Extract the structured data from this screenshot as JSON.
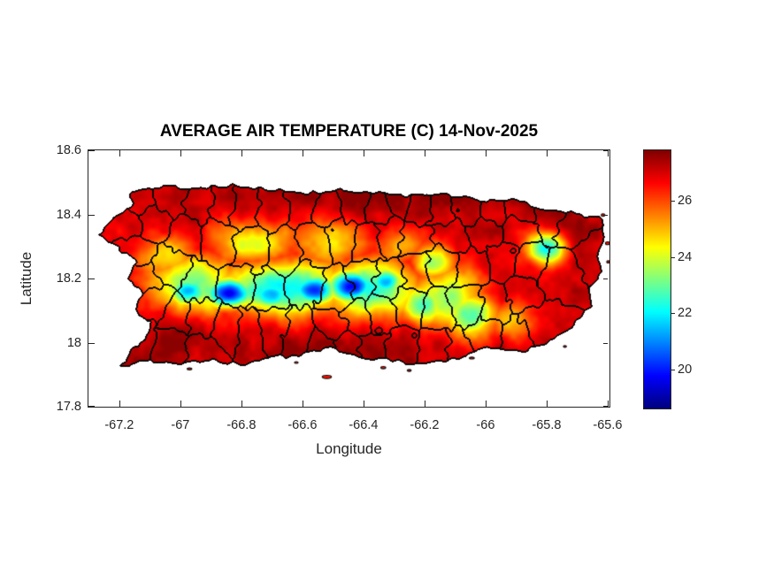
{
  "figure": {
    "background": "#ffffff",
    "text_color": "#262626",
    "axis_color": "#262626"
  },
  "chart_data": {
    "type": "heatmap",
    "title": "AVERAGE AIR TEMPERATURE (C) 14-Nov-2025",
    "xlabel": "Longitude",
    "ylabel": "Latitude",
    "region": "Puerto Rico municipal map with filled temperature contours",
    "units": "C",
    "xlim": [
      -67.301,
      -65.594
    ],
    "ylim": [
      17.8,
      18.6
    ],
    "xticks": [
      -67.2,
      -67,
      -66.8,
      -66.6,
      -66.4,
      -66.2,
      -66,
      -65.8,
      -65.6
    ],
    "xtick_labels": [
      "-67.2",
      "-67",
      "-66.8",
      "-66.6",
      "-66.4",
      "-66.2",
      "-66",
      "-65.8",
      "-65.6"
    ],
    "yticks": [
      18.6,
      18.4,
      18.2,
      18,
      17.8
    ],
    "ytick_labels": [
      "18.6",
      "18.4",
      "18.2",
      "18",
      "17.8"
    ],
    "grid": false,
    "colorbar": {
      "colormap": "jet",
      "range": [
        18.6,
        27.8
      ],
      "ticks": [
        26,
        24,
        22,
        20
      ],
      "tick_labels": [
        "26",
        "24",
        "22",
        "20"
      ],
      "position": "right"
    },
    "base_coastal_temp_c": 27.1,
    "noise": {
      "octave1": [
        20,
        0.8
      ],
      "octave2": [
        55,
        0.35
      ],
      "warp_scale": 46,
      "coast_warp": 0.014,
      "border_warp": 0.028
    },
    "cool_features": [
      [
        -66.95,
        18.18,
        4.2,
        0.1,
        0.065
      ],
      [
        -66.67,
        18.17,
        5.0,
        0.16,
        0.06
      ],
      [
        -66.38,
        18.17,
        5.0,
        0.11,
        0.06
      ],
      [
        -66.13,
        18.14,
        3.8,
        0.09,
        0.065
      ],
      [
        -66.84,
        18.155,
        7.2,
        0.055,
        0.034
      ],
      [
        -66.7,
        18.15,
        6.0,
        0.05,
        0.032
      ],
      [
        -66.56,
        18.165,
        6.6,
        0.055,
        0.034
      ],
      [
        -66.44,
        18.175,
        7.5,
        0.055,
        0.036
      ],
      [
        -66.33,
        18.19,
        6.0,
        0.04,
        0.03
      ],
      [
        -66.97,
        18.16,
        5.8,
        0.05,
        0.034
      ],
      [
        -66.2,
        18.12,
        4.4,
        0.05,
        0.045
      ],
      [
        -66.05,
        18.09,
        4.2,
        0.06,
        0.05
      ],
      [
        -66.17,
        18.25,
        3.5,
        0.05,
        0.042
      ],
      [
        -65.92,
        18.07,
        2.2,
        0.05,
        0.04
      ],
      [
        -65.8,
        18.295,
        5.5,
        0.045,
        0.036
      ],
      [
        -66.76,
        18.31,
        2.9,
        0.1,
        0.05
      ],
      [
        -66.5,
        18.31,
        2.5,
        0.09,
        0.05
      ],
      [
        -67.04,
        18.27,
        2.7,
        0.07,
        0.048
      ],
      [
        -66.28,
        18.3,
        2.0,
        0.06,
        0.045
      ]
    ],
    "warm_features": [
      [
        -66.05,
        18.47,
        0.5,
        0.3,
        0.05
      ],
      [
        -67.0,
        18.02,
        0.5,
        0.1,
        0.045
      ],
      [
        -66.55,
        17.98,
        0.45,
        0.18,
        0.045
      ],
      [
        -65.68,
        18.32,
        0.4,
        0.07,
        0.07
      ],
      [
        -66.45,
        18.47,
        0.35,
        0.15,
        0.04
      ]
    ],
    "coastline": [
      [
        -67.16,
        18.42
      ],
      [
        -67.16,
        18.465
      ],
      [
        -67.05,
        18.49
      ],
      [
        -66.96,
        18.48
      ],
      [
        -66.84,
        18.49
      ],
      [
        -66.7,
        18.475
      ],
      [
        -66.58,
        18.465
      ],
      [
        -66.47,
        18.475
      ],
      [
        -66.35,
        18.465
      ],
      [
        -66.26,
        18.455
      ],
      [
        -66.13,
        18.465
      ],
      [
        -66.0,
        18.44
      ],
      [
        -65.91,
        18.45
      ],
      [
        -65.81,
        18.415
      ],
      [
        -65.7,
        18.4
      ],
      [
        -65.62,
        18.385
      ],
      [
        -65.61,
        18.33
      ],
      [
        -65.63,
        18.27
      ],
      [
        -65.62,
        18.22
      ],
      [
        -65.66,
        18.17
      ],
      [
        -65.65,
        18.11
      ],
      [
        -65.72,
        18.05
      ],
      [
        -65.8,
        18.0
      ],
      [
        -65.88,
        17.97
      ],
      [
        -65.99,
        17.985
      ],
      [
        -66.1,
        17.95
      ],
      [
        -66.21,
        17.93
      ],
      [
        -66.3,
        17.945
      ],
      [
        -66.39,
        17.95
      ],
      [
        -66.51,
        17.985
      ],
      [
        -66.62,
        17.96
      ],
      [
        -66.72,
        17.955
      ],
      [
        -66.79,
        17.93
      ],
      [
        -66.9,
        17.945
      ],
      [
        -67.02,
        17.93
      ],
      [
        -67.1,
        17.945
      ],
      [
        -67.195,
        17.925
      ],
      [
        -67.16,
        17.975
      ],
      [
        -67.11,
        18.01
      ],
      [
        -67.095,
        18.06
      ],
      [
        -67.15,
        18.1
      ],
      [
        -67.125,
        18.15
      ],
      [
        -67.17,
        18.2
      ],
      [
        -67.14,
        18.25
      ],
      [
        -67.19,
        18.285
      ],
      [
        -67.27,
        18.335
      ],
      [
        -67.22,
        18.385
      ]
    ],
    "islets": [
      [
        -66.52,
        17.893,
        0.03,
        0.01
      ],
      [
        -66.335,
        17.922,
        0.016,
        0.007
      ],
      [
        -66.25,
        17.913,
        0.013,
        0.006
      ],
      [
        -66.045,
        17.952,
        0.016,
        0.006
      ],
      [
        -66.97,
        17.918,
        0.015,
        0.006
      ],
      [
        -65.615,
        18.398,
        0.012,
        0.008
      ],
      [
        -65.6,
        18.31,
        0.014,
        0.009
      ],
      [
        -65.598,
        18.252,
        0.01,
        0.007
      ],
      [
        -65.74,
        17.988,
        0.01,
        0.006
      ],
      [
        -66.62,
        17.938,
        0.012,
        0.005
      ]
    ],
    "municipality_seeds": [
      [
        -67.13,
        18.44
      ],
      [
        -67.03,
        18.46
      ],
      [
        -66.94,
        18.44
      ],
      [
        -66.86,
        18.44
      ],
      [
        -66.79,
        18.43
      ],
      [
        -66.7,
        18.42
      ],
      [
        -66.6,
        18.43
      ],
      [
        -66.52,
        18.42
      ],
      [
        -66.43,
        18.43
      ],
      [
        -66.35,
        18.42
      ],
      [
        -66.28,
        18.44
      ],
      [
        -66.21,
        18.42
      ],
      [
        -66.14,
        18.41
      ],
      [
        -66.06,
        18.42
      ],
      [
        -65.97,
        18.41
      ],
      [
        -65.88,
        18.42
      ],
      [
        -65.79,
        18.4
      ],
      [
        -65.7,
        18.37
      ],
      [
        -67.18,
        18.37
      ],
      [
        -67.09,
        18.38
      ],
      [
        -66.98,
        18.33
      ],
      [
        -66.88,
        18.31
      ],
      [
        -66.77,
        18.29
      ],
      [
        -66.66,
        18.28
      ],
      [
        -66.56,
        18.31
      ],
      [
        -66.47,
        18.32
      ],
      [
        -66.39,
        18.31
      ],
      [
        -66.31,
        18.33
      ],
      [
        -66.24,
        18.31
      ],
      [
        -66.11,
        18.34
      ],
      [
        -66.0,
        18.35
      ],
      [
        -65.9,
        18.35
      ],
      [
        -65.65,
        18.28
      ],
      [
        -67.15,
        18.28
      ],
      [
        -67.02,
        18.24
      ],
      [
        -66.93,
        18.19
      ],
      [
        -66.81,
        18.18
      ],
      [
        -66.72,
        18.16
      ],
      [
        -66.59,
        18.19
      ],
      [
        -66.49,
        18.16
      ],
      [
        -66.4,
        18.21
      ],
      [
        -66.32,
        18.2
      ],
      [
        -66.23,
        18.23
      ],
      [
        -66.14,
        18.25
      ],
      [
        -66.04,
        18.23
      ],
      [
        -65.95,
        18.26
      ],
      [
        -65.86,
        18.24
      ],
      [
        -65.76,
        18.22
      ],
      [
        -67.13,
        18.19
      ],
      [
        -67.09,
        18.12
      ],
      [
        -67.01,
        18.07
      ],
      [
        -66.93,
        18.07
      ],
      [
        -66.85,
        18.04
      ],
      [
        -66.77,
        18.03
      ],
      [
        -66.7,
        18.05
      ],
      [
        -66.61,
        18.03
      ],
      [
        -66.5,
        18.05
      ],
      [
        -66.42,
        18.07
      ],
      [
        -66.34,
        18.09
      ],
      [
        -66.25,
        18.12
      ],
      [
        -66.16,
        18.1
      ],
      [
        -66.06,
        18.12
      ],
      [
        -65.97,
        18.12
      ],
      [
        -65.88,
        18.16
      ],
      [
        -65.82,
        18.05
      ],
      [
        -65.9,
        18.0
      ],
      [
        -67.14,
        18.03
      ],
      [
        -67.03,
        18.0
      ],
      [
        -66.92,
        17.97
      ],
      [
        -66.53,
        18.0
      ],
      [
        -66.45,
        17.99
      ],
      [
        -66.37,
        17.98
      ],
      [
        -66.28,
        17.97
      ],
      [
        -66.17,
        17.98
      ],
      [
        -66.08,
        17.97
      ],
      [
        -66.0,
        18.01
      ]
    ]
  }
}
